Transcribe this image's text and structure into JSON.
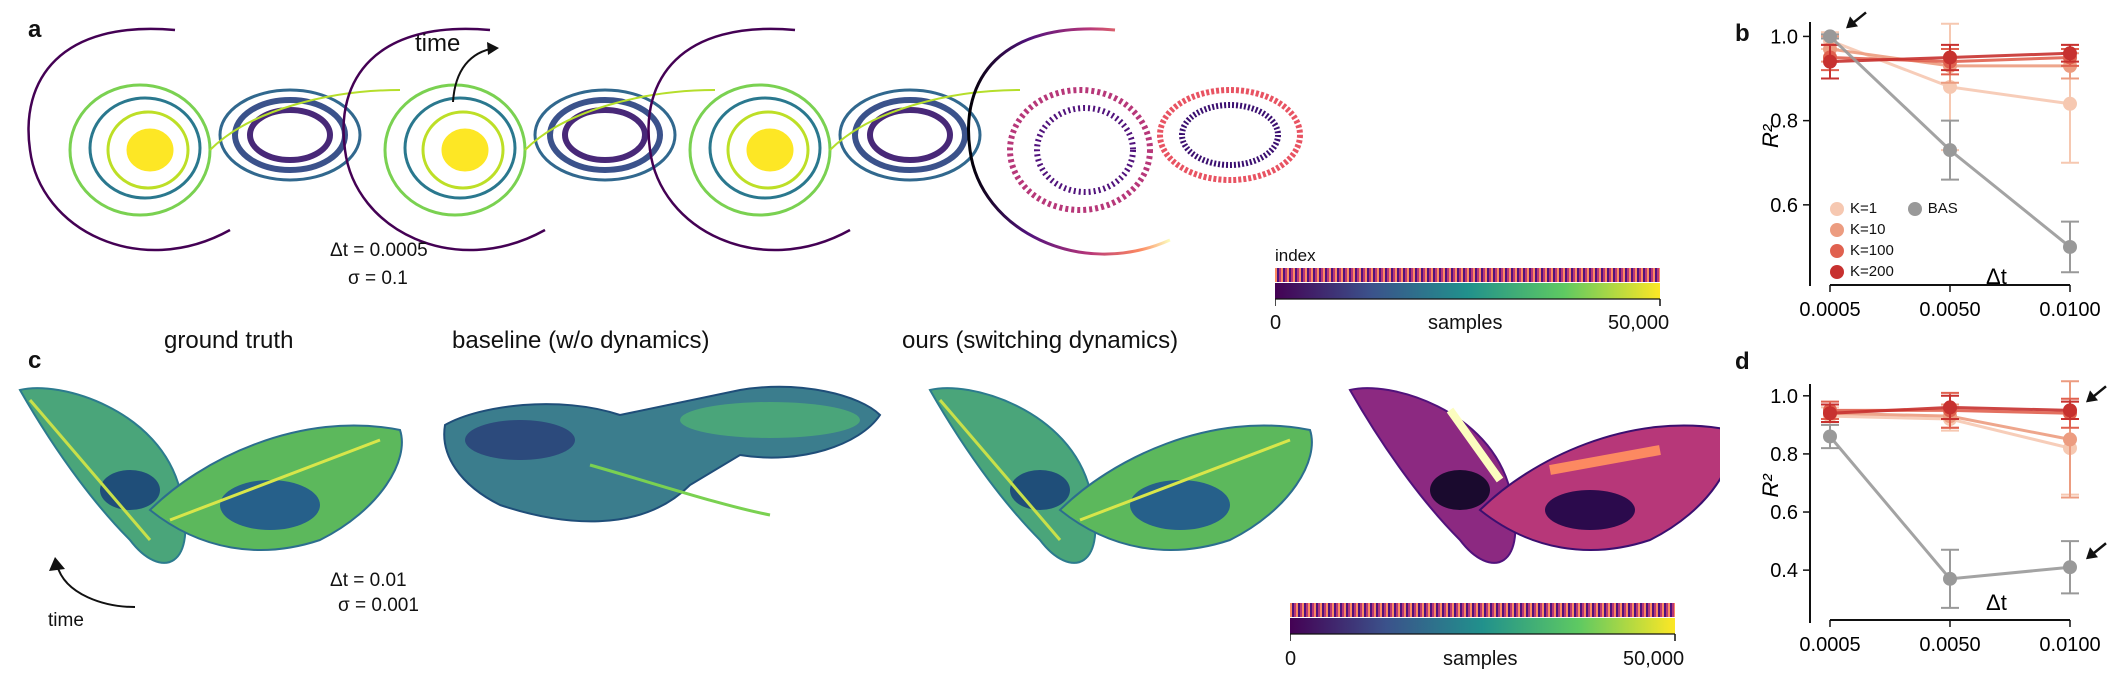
{
  "panels": {
    "a": "a",
    "b": "b",
    "c": "c",
    "d": "d"
  },
  "panel_a": {
    "time_label": "time",
    "dt_text": "Δt = 0.0005",
    "sigma_text": "σ = 0.1",
    "index_label": "index",
    "samples_label": "samples",
    "cbar_min": "0",
    "cbar_max": "50,000"
  },
  "panel_c": {
    "titles": [
      "ground truth",
      "baseline (w/o dynamics)",
      "ours (switching dynamics)"
    ],
    "time_label": "time",
    "dt_text": "Δt = 0.01",
    "sigma_text": "σ = 0.001",
    "samples_label": "samples",
    "cbar_min": "0",
    "cbar_max": "50,000"
  },
  "colors": {
    "K1": "#f6c8b1",
    "K10": "#ec9c80",
    "K100": "#e0614f",
    "K200": "#c7312f",
    "BAS": "#999999"
  },
  "chart_data": [
    {
      "type": "line",
      "panel": "b",
      "xlabel": "Δt",
      "ylabel": "R²",
      "x": [
        "0.0005",
        "0.0050",
        "0.0100"
      ],
      "ylim": [
        0.45,
        1.02
      ],
      "yticks": [
        "0.6",
        "0.8",
        "1.0"
      ],
      "legend": [
        "K=1",
        "K=10",
        "K=100",
        "K=200",
        "BAS"
      ],
      "series": [
        {
          "name": "K=1",
          "color": "#f6c8b1",
          "values": [
            0.99,
            0.88,
            0.84
          ],
          "err": [
            0.02,
            0.15,
            0.14
          ]
        },
        {
          "name": "K=10",
          "color": "#ec9c80",
          "values": [
            0.97,
            0.93,
            0.93
          ],
          "err": [
            0.03,
            0.04,
            0.03
          ]
        },
        {
          "name": "K=100",
          "color": "#e0614f",
          "values": [
            0.95,
            0.94,
            0.95
          ],
          "err": [
            0.03,
            0.03,
            0.02
          ]
        },
        {
          "name": "K=200",
          "color": "#c7312f",
          "values": [
            0.94,
            0.95,
            0.96
          ],
          "err": [
            0.04,
            0.03,
            0.02
          ]
        },
        {
          "name": "BAS",
          "color": "#999999",
          "values": [
            1.0,
            0.73,
            0.5
          ],
          "err": [
            0.005,
            0.07,
            0.06
          ]
        }
      ],
      "arrows_at": [
        [
          0.0005,
          1.0
        ]
      ]
    },
    {
      "type": "line",
      "panel": "d",
      "xlabel": "Δt",
      "ylabel": "R²",
      "x": [
        "0.0005",
        "0.0050",
        "0.0100"
      ],
      "ylim": [
        0.28,
        1.02
      ],
      "yticks": [
        "0.4",
        "0.6",
        "0.8",
        "1.0"
      ],
      "series": [
        {
          "name": "K=1",
          "color": "#f6c8b1",
          "values": [
            0.93,
            0.92,
            0.82
          ],
          "err": [
            0.03,
            0.04,
            0.16
          ]
        },
        {
          "name": "K=10",
          "color": "#ec9c80",
          "values": [
            0.94,
            0.93,
            0.85
          ],
          "err": [
            0.03,
            0.04,
            0.2
          ]
        },
        {
          "name": "K=100",
          "color": "#e0614f",
          "values": [
            0.95,
            0.95,
            0.94
          ],
          "err": [
            0.03,
            0.06,
            0.05
          ]
        },
        {
          "name": "K=200",
          "color": "#c7312f",
          "values": [
            0.94,
            0.96,
            0.95
          ],
          "err": [
            0.03,
            0.04,
            0.03
          ]
        },
        {
          "name": "BAS",
          "color": "#999999",
          "values": [
            0.86,
            0.37,
            0.41
          ],
          "err": [
            0.04,
            0.1,
            0.09
          ]
        }
      ],
      "arrows_at": [
        [
          0.01,
          0.95
        ],
        [
          0.01,
          0.41
        ]
      ]
    }
  ]
}
